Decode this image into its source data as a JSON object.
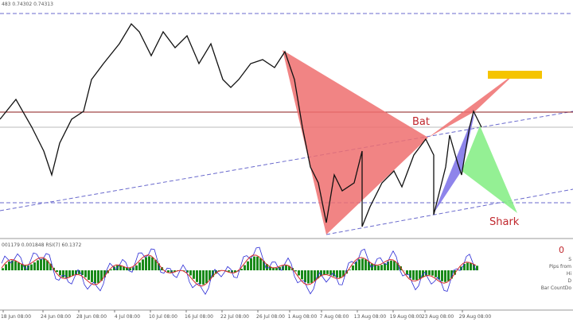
{
  "header": {
    "quote": "483 0.74302 0.74313"
  },
  "patterns": {
    "bat": "Bat",
    "shark": "Shark"
  },
  "indicator": {
    "label": "001179 0.001848 RSI(7) 60.1372",
    "value": "0",
    "info": [
      "S",
      "Pips from",
      "Hi",
      "D",
      "Bar CountDo"
    ]
  },
  "x_axis": {
    "labels": [
      "18 Jun 08:00",
      "24 Jun 08:00",
      "28 Jun 08:00",
      "4 Jul 08:00",
      "10 Jul 08:00",
      "16 Jul 08:00",
      "22 Jul 08:00",
      "26 Jul 08:00",
      "1 Aug 08:00",
      "7 Aug 08:00",
      "13 Aug 08:00",
      "19 Aug 08:00",
      "23 Aug 08:00",
      "29 Aug 08:00"
    ]
  }
}
